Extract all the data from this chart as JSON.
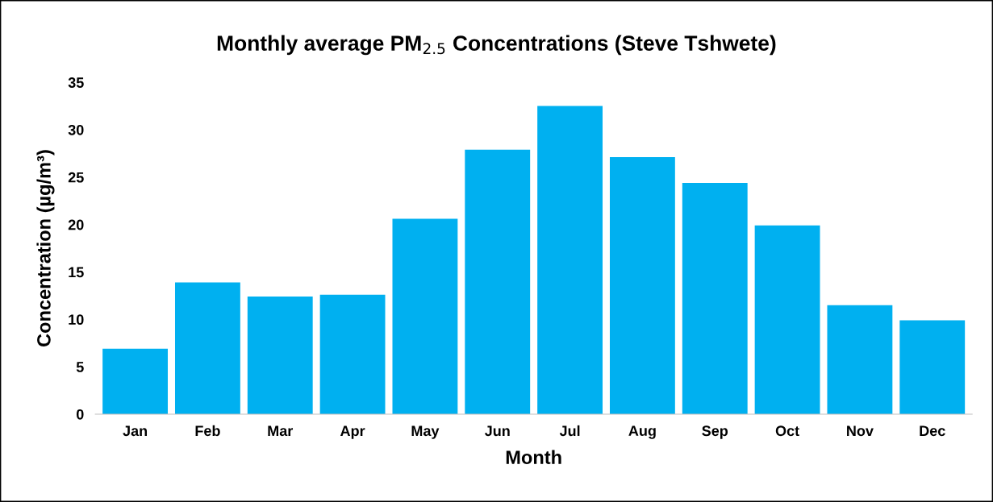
{
  "chart_data": {
    "type": "bar",
    "title": "Monthly average PM$_{2.5}$ Concentrations (Steve Tshwete)",
    "xlabel": "Month",
    "ylabel": "Concentration (µg/m³)",
    "categories": [
      "Jan",
      "Feb",
      "Mar",
      "Apr",
      "May",
      "Jun",
      "Jul",
      "Aug",
      "Sep",
      "Oct",
      "Nov",
      "Dec"
    ],
    "values": [
      6.9,
      13.9,
      12.4,
      12.6,
      20.6,
      27.9,
      32.5,
      27.1,
      24.4,
      19.9,
      11.5,
      9.9
    ],
    "color": "#00b0f0",
    "ylim": [
      0,
      35
    ],
    "yticks": [
      0,
      5,
      10,
      15,
      20,
      25,
      30,
      35
    ],
    "grid": false,
    "legend": false
  }
}
